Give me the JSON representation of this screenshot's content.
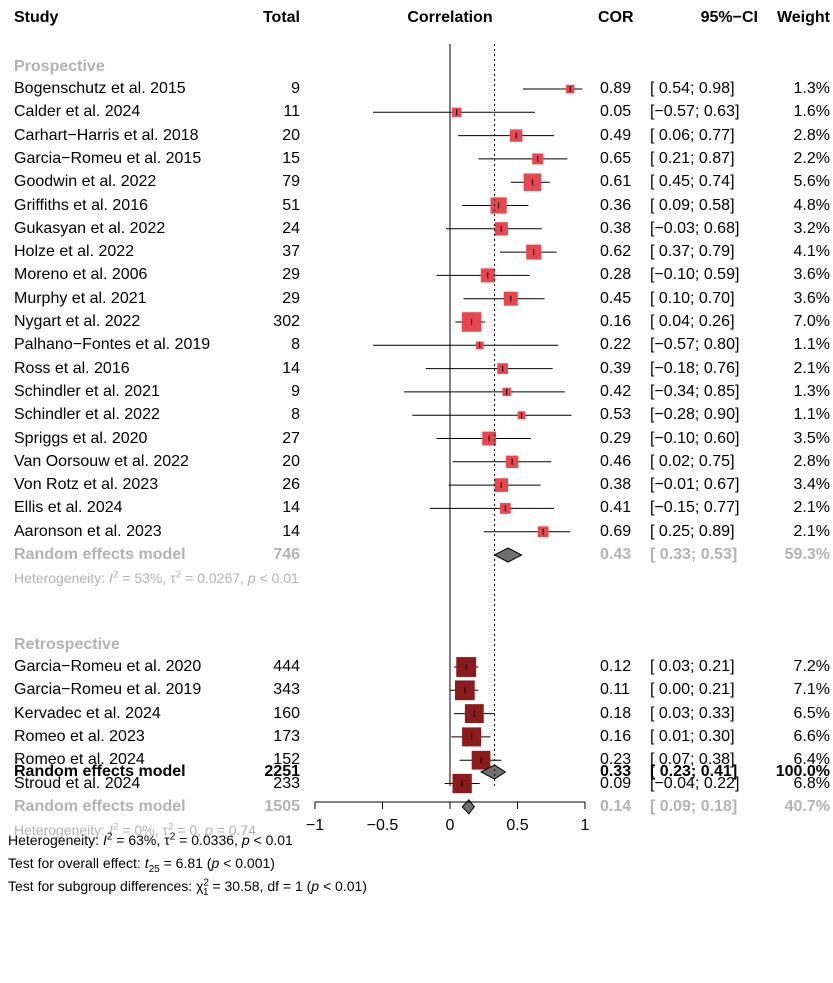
{
  "headers": {
    "study": "Study",
    "total": "Total",
    "correlation": "Correlation",
    "cor": "COR",
    "ci": "95%−CI",
    "weight": "Weight"
  },
  "chart_data": {
    "type": "forest",
    "xlim": [
      -1,
      1
    ],
    "xticks": [
      "−1",
      "−0.5",
      "0",
      "0.5",
      "1"
    ],
    "reference_line": 0,
    "overall_dotted_line": 0.33,
    "groups": [
      {
        "name": "Prospective",
        "color": "#e8474f",
        "studies": [
          {
            "study": "Bogenschutz et al. 2015",
            "total": "9",
            "cor": 0.89,
            "lower": 0.54,
            "upper": 0.98,
            "cor_text": "0.89",
            "ci_text": "[ 0.54; 0.98]",
            "weight": "1.3%",
            "w": 1.3
          },
          {
            "study": "Calder et al. 2024",
            "total": "11",
            "cor": 0.05,
            "lower": -0.57,
            "upper": 0.63,
            "cor_text": "0.05",
            "ci_text": "[−0.57; 0.63]",
            "weight": "1.6%",
            "w": 1.6
          },
          {
            "study": "Carhart−Harris et al. 2018",
            "total": "20",
            "cor": 0.49,
            "lower": 0.06,
            "upper": 0.77,
            "cor_text": "0.49",
            "ci_text": "[ 0.06; 0.77]",
            "weight": "2.8%",
            "w": 2.8
          },
          {
            "study": "Garcia−Romeu et al. 2015",
            "total": "15",
            "cor": 0.65,
            "lower": 0.21,
            "upper": 0.87,
            "cor_text": "0.65",
            "ci_text": "[ 0.21; 0.87]",
            "weight": "2.2%",
            "w": 2.2
          },
          {
            "study": "Goodwin et al. 2022",
            "total": "79",
            "cor": 0.61,
            "lower": 0.45,
            "upper": 0.74,
            "cor_text": "0.61",
            "ci_text": "[ 0.45; 0.74]",
            "weight": "5.6%",
            "w": 5.6
          },
          {
            "study": "Griffiths et al. 2016",
            "total": "51",
            "cor": 0.36,
            "lower": 0.09,
            "upper": 0.58,
            "cor_text": "0.36",
            "ci_text": "[ 0.09; 0.58]",
            "weight": "4.8%",
            "w": 4.8
          },
          {
            "study": "Gukasyan et al. 2022",
            "total": "24",
            "cor": 0.38,
            "lower": -0.03,
            "upper": 0.68,
            "cor_text": "0.38",
            "ci_text": "[−0.03; 0.68]",
            "weight": "3.2%",
            "w": 3.2
          },
          {
            "study": "Holze et al. 2022",
            "total": "37",
            "cor": 0.62,
            "lower": 0.37,
            "upper": 0.79,
            "cor_text": "0.62",
            "ci_text": "[ 0.37; 0.79]",
            "weight": "4.1%",
            "w": 4.1
          },
          {
            "study": "Moreno et al. 2006",
            "total": "29",
            "cor": 0.28,
            "lower": -0.1,
            "upper": 0.59,
            "cor_text": "0.28",
            "ci_text": "[−0.10; 0.59]",
            "weight": "3.6%",
            "w": 3.6
          },
          {
            "study": "Murphy et al. 2021",
            "total": "29",
            "cor": 0.45,
            "lower": 0.1,
            "upper": 0.7,
            "cor_text": "0.45",
            "ci_text": "[ 0.10; 0.70]",
            "weight": "3.6%",
            "w": 3.6
          },
          {
            "study": "Nygart et al. 2022",
            "total": "302",
            "cor": 0.16,
            "lower": 0.04,
            "upper": 0.26,
            "cor_text": "0.16",
            "ci_text": "[ 0.04; 0.26]",
            "weight": "7.0%",
            "w": 7.0
          },
          {
            "study": "Palhano−Fontes et al. 2019",
            "total": "8",
            "cor": 0.22,
            "lower": -0.57,
            "upper": 0.8,
            "cor_text": "0.22",
            "ci_text": "[−0.57; 0.80]",
            "weight": "1.1%",
            "w": 1.1
          },
          {
            "study": "Ross et al. 2016",
            "total": "14",
            "cor": 0.39,
            "lower": -0.18,
            "upper": 0.76,
            "cor_text": "0.39",
            "ci_text": "[−0.18; 0.76]",
            "weight": "2.1%",
            "w": 2.1
          },
          {
            "study": "Schindler et al. 2021",
            "total": "9",
            "cor": 0.42,
            "lower": -0.34,
            "upper": 0.85,
            "cor_text": "0.42",
            "ci_text": "[−0.34; 0.85]",
            "weight": "1.3%",
            "w": 1.3
          },
          {
            "study": "Schindler et al. 2022",
            "total": "8",
            "cor": 0.53,
            "lower": -0.28,
            "upper": 0.9,
            "cor_text": "0.53",
            "ci_text": "[−0.28; 0.90]",
            "weight": "1.1%",
            "w": 1.1
          },
          {
            "study": "Spriggs et al. 2020",
            "total": "27",
            "cor": 0.29,
            "lower": -0.1,
            "upper": 0.6,
            "cor_text": "0.29",
            "ci_text": "[−0.10; 0.60]",
            "weight": "3.5%",
            "w": 3.5
          },
          {
            "study": "Van Oorsouw et al. 2022",
            "total": "20",
            "cor": 0.46,
            "lower": 0.02,
            "upper": 0.75,
            "cor_text": "0.46",
            "ci_text": "[ 0.02; 0.75]",
            "weight": "2.8%",
            "w": 2.8
          },
          {
            "study": "Von Rotz et al. 2023",
            "total": "26",
            "cor": 0.38,
            "lower": -0.01,
            "upper": 0.67,
            "cor_text": "0.38",
            "ci_text": "[−0.01; 0.67]",
            "weight": "3.4%",
            "w": 3.4
          },
          {
            "study": "Ellis et al. 2024",
            "total": "14",
            "cor": 0.41,
            "lower": -0.15,
            "upper": 0.77,
            "cor_text": "0.41",
            "ci_text": "[−0.15; 0.77]",
            "weight": "2.1%",
            "w": 2.1
          },
          {
            "study": "Aaronson et al. 2023",
            "total": "14",
            "cor": 0.69,
            "lower": 0.25,
            "upper": 0.89,
            "cor_text": "0.69",
            "ci_text": "[ 0.25; 0.89]",
            "weight": "2.1%",
            "w": 2.1
          }
        ],
        "summary": {
          "label": "Random effects model",
          "total": "746",
          "cor": 0.43,
          "lower": 0.33,
          "upper": 0.53,
          "cor_text": "0.43",
          "ci_text": "[ 0.33; 0.53]",
          "weight": "59.3%"
        },
        "heterogeneity": {
          "prefix": "Heterogeneity: ",
          "I": "I",
          "two": "2",
          "mid": " = 53%, τ",
          "mid2": " = 0.0267, ",
          "p": "p",
          "end": " < 0.01"
        }
      },
      {
        "name": "Retrospective",
        "color": "#8b1a1a",
        "studies": [
          {
            "study": "Garcia−Romeu et al. 2020",
            "total": "444",
            "cor": 0.12,
            "lower": 0.03,
            "upper": 0.21,
            "cor_text": "0.12",
            "ci_text": "[ 0.03; 0.21]",
            "weight": "7.2%",
            "w": 7.2
          },
          {
            "study": "Garcia−Romeu et al. 2019",
            "total": "343",
            "cor": 0.11,
            "lower": 0.0,
            "upper": 0.21,
            "cor_text": "0.11",
            "ci_text": "[ 0.00; 0.21]",
            "weight": "7.1%",
            "w": 7.1
          },
          {
            "study": "Kervadec et al. 2024",
            "total": "160",
            "cor": 0.18,
            "lower": 0.03,
            "upper": 0.33,
            "cor_text": "0.18",
            "ci_text": "[ 0.03; 0.33]",
            "weight": "6.5%",
            "w": 6.5
          },
          {
            "study": "Romeo et al. 2023",
            "total": "173",
            "cor": 0.16,
            "lower": 0.01,
            "upper": 0.3,
            "cor_text": "0.16",
            "ci_text": "[ 0.01; 0.30]",
            "weight": "6.6%",
            "w": 6.6
          },
          {
            "study": "Romeo et al. 2024",
            "total": "152",
            "cor": 0.23,
            "lower": 0.07,
            "upper": 0.38,
            "cor_text": "0.23",
            "ci_text": "[ 0.07; 0.38]",
            "weight": "6.4%",
            "w": 6.4
          },
          {
            "study": "Stroud et al. 2024",
            "total": "233",
            "cor": 0.09,
            "lower": -0.04,
            "upper": 0.22,
            "cor_text": "0.09",
            "ci_text": "[−0.04; 0.22]",
            "weight": "6.8%",
            "w": 6.8
          }
        ],
        "summary": {
          "label": "Random effects model",
          "total": "1505",
          "cor": 0.14,
          "lower": 0.09,
          "upper": 0.18,
          "cor_text": "0.14",
          "ci_text": "[ 0.09; 0.18]",
          "weight": "40.7%"
        },
        "heterogeneity": {
          "prefix": "Heterogeneity: ",
          "I": "I",
          "two": "2",
          "mid": " = 0%, τ",
          "mid2": " = 0, ",
          "p": "p",
          "end": " = 0.74"
        }
      }
    ],
    "overall": {
      "label": "Random effects model",
      "total": "2251",
      "cor": 0.33,
      "lower": 0.23,
      "upper": 0.41,
      "cor_text": "0.33",
      "ci_text": "[ 0.23; 0.41]",
      "weight": "100.0%"
    }
  },
  "footer": {
    "het": {
      "prefix": "Heterogeneity: ",
      "I": "I",
      "two": "2",
      "mid": " = 63%, τ",
      "mid2": " = 0.0336, ",
      "p": "p",
      "end": " < 0.01"
    },
    "overall_test": {
      "prefix": "Test for overall effect: ",
      "t": "t",
      "sub": "25",
      "mid": " = 6.81 (",
      "p": "p",
      "end": " < 0.001)"
    },
    "subgroup_test": {
      "prefix": "Test for subgroup differences: χ",
      "sup": "2",
      "sub": "1",
      "mid": " = 30.58, df = 1 (",
      "p": "p",
      "end": " < 0.01)"
    }
  },
  "colors": {
    "summary_diamond": "#707070",
    "grey_text": "#b3b3b3",
    "line": "#000000"
  }
}
